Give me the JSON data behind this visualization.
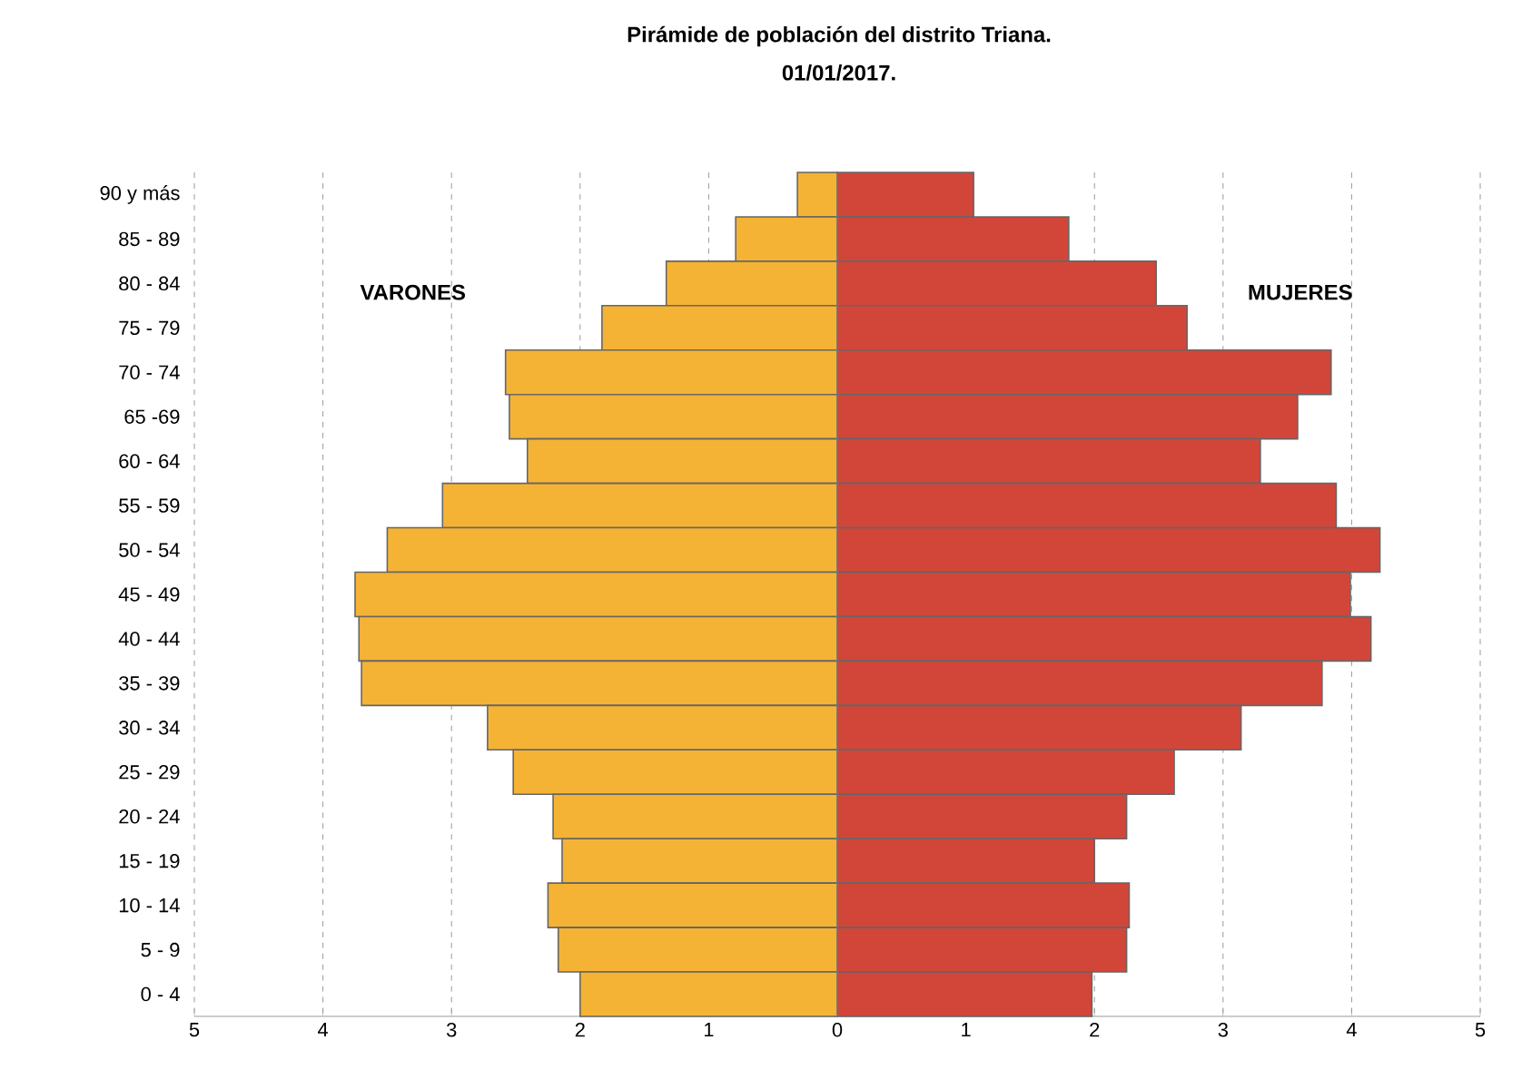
{
  "chart_data": {
    "type": "bar",
    "orientation": "horizontal",
    "title": "Pirámide de población del distrito Triana.",
    "subtitle": "01/01/2017.",
    "categories": [
      "90 y más",
      "85 - 89",
      "80 - 84",
      "75 - 79",
      "70 - 74",
      "65 -69",
      "60 - 64",
      "55 - 59",
      "50 - 54",
      "45 - 49",
      "40 - 44",
      "35 - 39",
      "30 - 34",
      "25 - 29",
      "20 - 24",
      "15 - 19",
      "10 - 14",
      "5 - 9",
      "0 - 4"
    ],
    "series": [
      {
        "name": "VARONES",
        "color": "#f5b335",
        "values": [
          -0.31,
          -0.79,
          -1.33,
          -1.83,
          -2.58,
          -2.55,
          -2.41,
          -3.07,
          -3.5,
          -3.75,
          -3.72,
          -3.7,
          -2.72,
          -2.52,
          -2.21,
          -2.14,
          -2.25,
          -2.17,
          -2.0
        ]
      },
      {
        "name": "MUJERES",
        "color": "#d2463a",
        "values": [
          1.06,
          1.8,
          2.48,
          2.72,
          3.84,
          3.58,
          3.29,
          3.88,
          4.22,
          3.99,
          4.15,
          3.77,
          3.14,
          2.62,
          2.25,
          2.0,
          2.27,
          2.25,
          1.98
        ]
      }
    ],
    "xlim": [
      -5,
      5
    ],
    "xticks": [
      {
        "value": -5,
        "label": "5"
      },
      {
        "value": -4,
        "label": "4"
      },
      {
        "value": -3,
        "label": "3"
      },
      {
        "value": -2,
        "label": "2"
      },
      {
        "value": -1,
        "label": "1"
      },
      0,
      1,
      2,
      3,
      4,
      5
    ],
    "stacked": true,
    "grid": "x",
    "legend": false
  }
}
